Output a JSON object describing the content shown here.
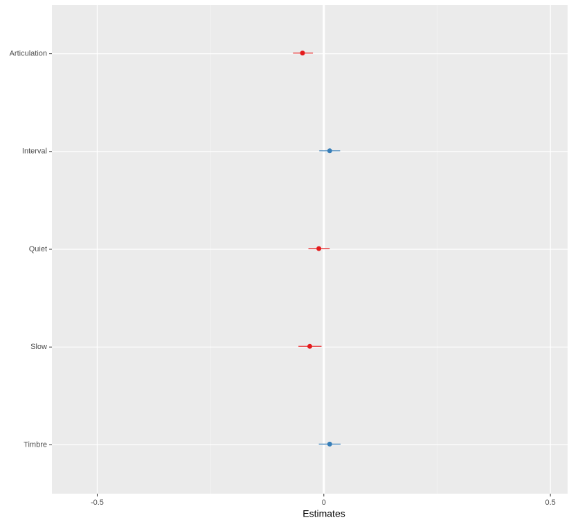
{
  "chart_data": {
    "type": "forest",
    "x_label": "Estimates",
    "categories": [
      "Articulation",
      "Interval",
      "Quiet",
      "Slow",
      "Timbre"
    ],
    "estimates": [
      -0.047,
      0.013,
      -0.011,
      -0.031,
      0.013
    ],
    "lower": [
      -0.068,
      -0.01,
      -0.034,
      -0.056,
      -0.011
    ],
    "upper": [
      -0.024,
      0.036,
      0.013,
      -0.005,
      0.037
    ],
    "colors": [
      "#e41a1c",
      "#377eb8",
      "#e41a1c",
      "#e41a1c",
      "#377eb8"
    ],
    "xlim": [
      -0.6,
      0.538
    ],
    "xticks": [
      -0.5,
      0,
      0.5
    ],
    "x_minor_grid": [
      -0.25,
      0.25
    ],
    "grid": true,
    "panel_background": "#ebebeb"
  }
}
